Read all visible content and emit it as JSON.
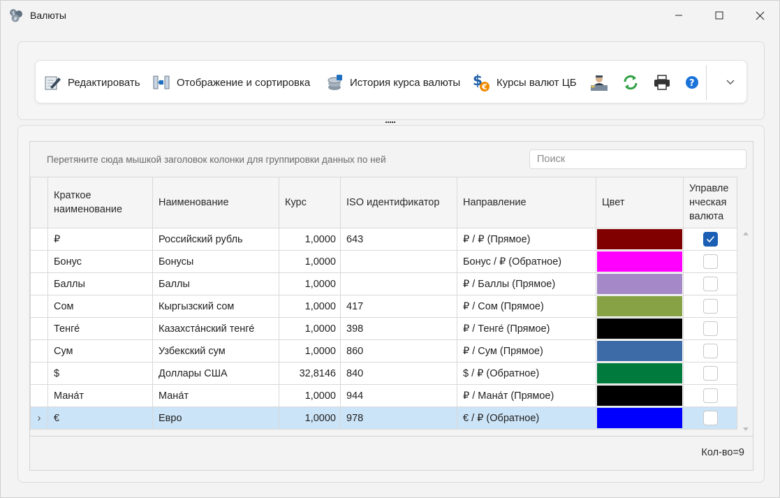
{
  "window": {
    "title": "Валюты",
    "icon": "coins-app-icon",
    "controls": {
      "minimize": "minimize-icon",
      "maximize": "maximize-icon",
      "close": "close-icon"
    }
  },
  "toolbar": {
    "buttons": [
      {
        "id": "edit",
        "label": "Редактировать",
        "icon": "pencil-edit-icon"
      },
      {
        "id": "display-sort",
        "label": "Отображение и сортировка",
        "icon": "columns-sort-icon"
      },
      {
        "id": "history",
        "label": "История курса валюты",
        "icon": "history-coins-icon"
      },
      {
        "id": "cb-rates",
        "label": "Курсы валют ЦБ",
        "icon": "dollar-euro-icon"
      }
    ],
    "icon_buttons": [
      "banker-icon",
      "refresh-icon",
      "print-icon",
      "help-icon"
    ],
    "more_icon": "chevron-down-icon"
  },
  "grid": {
    "group_hint": "Перетяните сюда мышкой заголовок колонки для группировки данных по ней",
    "search_placeholder": "Поиск",
    "columns": {
      "short_name": "Краткое наименование",
      "name": "Наименование",
      "rate": "Курс",
      "iso": "ISO идентификатор",
      "direction": "Направление",
      "color": "Цвет",
      "managerial": "Управленческая валюта"
    },
    "rows": [
      {
        "short": "₽",
        "name": "Российский рубль",
        "rate": "1,0000",
        "iso": "643",
        "direction": "₽ / ₽   (Прямое)",
        "color": "#800000",
        "managerial": true,
        "selected": false
      },
      {
        "short": "Бонус",
        "name": "Бонусы",
        "rate": "1,0000",
        "iso": "",
        "direction": "Бонус / ₽   (Обратное)",
        "color": "#ff00ff",
        "managerial": false,
        "selected": false
      },
      {
        "short": "Баллы",
        "name": "Баллы",
        "rate": "1,0000",
        "iso": "",
        "direction": "₽ / Баллы   (Прямое)",
        "color": "#a488c8",
        "managerial": false,
        "selected": false
      },
      {
        "short": "Сом",
        "name": "Кыргызский сом",
        "rate": "1,0000",
        "iso": "417",
        "direction": "₽ / Сом   (Прямое)",
        "color": "#86a244",
        "managerial": false,
        "selected": false
      },
      {
        "short": "Тенге́",
        "name": "Казахста́нский тенге́",
        "rate": "1,0000",
        "iso": "398",
        "direction": "₽ / Тенге́   (Прямое)",
        "color": "#000000",
        "managerial": false,
        "selected": false
      },
      {
        "short": "Сум",
        "name": "Узбекский сум",
        "rate": "1,0000",
        "iso": "860",
        "direction": "₽ / Сум   (Прямое)",
        "color": "#3d6ba8",
        "managerial": false,
        "selected": false
      },
      {
        "short": "$",
        "name": "Доллары США",
        "rate": "32,8146",
        "iso": "840",
        "direction": "$ / ₽   (Обратное)",
        "color": "#007a3d",
        "managerial": false,
        "selected": false
      },
      {
        "short": "Мана́т",
        "name": "Мана́т",
        "rate": "1,0000",
        "iso": "944",
        "direction": "₽ / Мана́т   (Прямое)",
        "color": "#000000",
        "managerial": false,
        "selected": false
      },
      {
        "short": "€",
        "name": "Евро",
        "rate": "1,0000",
        "iso": "978",
        "direction": "€ / ₽   (Обратное)",
        "color": "#0000ff",
        "managerial": false,
        "selected": true
      }
    ],
    "current_row_marker": "›",
    "count_label": "Кол-во=9"
  }
}
